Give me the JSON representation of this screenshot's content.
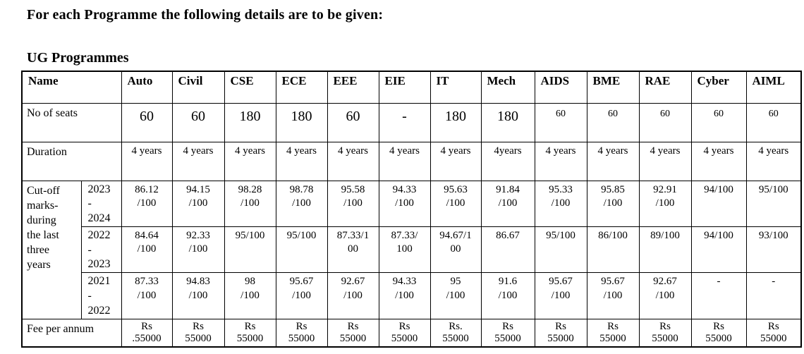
{
  "page": {
    "intro": "For each Programme the following details are to be given:",
    "section_title": "UG Programmes"
  },
  "table": {
    "header_label": "Name",
    "programs": [
      "Auto",
      "Civil",
      "CSE",
      "ECE",
      "EEE",
      "EIE",
      "IT",
      "Mech",
      "AIDS",
      "BME",
      "RAE",
      "Cyber",
      "AIML"
    ],
    "seats": {
      "label": "No of seats",
      "values": [
        "60",
        "60",
        "180",
        "180",
        "60",
        "-",
        "180",
        "180",
        "60",
        "60",
        "60",
        "60",
        "60"
      ],
      "small_start_index": 8
    },
    "duration": {
      "label": "Duration",
      "values": [
        "4 years",
        "4 years",
        "4 years",
        "4 years",
        "4 years",
        "4 years",
        "4 years",
        "4years",
        "4 years",
        "4 years",
        "4 years",
        "4 years",
        "4 years"
      ]
    },
    "cutoff": {
      "label_lines": [
        "Cut-off",
        "marks-",
        "during",
        "the last",
        "three",
        "years"
      ],
      "years": [
        {
          "year_lines": [
            "2023",
            "-",
            "2024"
          ],
          "values": [
            "86.12\n/100",
            "94.15\n/100",
            "98.28\n/100",
            "98.78\n/100",
            "95.58\n/100",
            "94.33\n/100",
            "95.63\n/100",
            "91.84\n/100",
            "95.33\n/100",
            "95.85\n/100",
            "92.91\n/100",
            "94/100",
            "95/100"
          ]
        },
        {
          "year_lines": [
            "2022",
            "-",
            "2023"
          ],
          "values": [
            "84.64\n/100",
            "92.33\n/100",
            "95/100",
            "95/100",
            "87.33/1\n00",
            "87.33/\n100",
            "94.67/1\n00",
            "86.67",
            "95/100",
            "86/100",
            "89/100",
            "94/100",
            "93/100"
          ]
        },
        {
          "year_lines": [
            "2021",
            "-",
            "2022"
          ],
          "values": [
            "87.33\n/100",
            "94.83\n/100",
            "98\n/100",
            "95.67\n/100",
            "92.67\n/100",
            "94.33\n/100",
            "95\n/100",
            "91.6\n/100",
            "95.67\n/100",
            "95.67\n/100",
            "92.67\n/100",
            "-",
            "-"
          ]
        }
      ]
    },
    "fee": {
      "label": "Fee per annum",
      "values": [
        "Rs\n.55000",
        "Rs\n55000",
        "Rs\n55000",
        "Rs\n55000",
        "Rs\n55000",
        "Rs\n55000",
        "Rs.\n55000",
        "Rs\n55000",
        "Rs\n55000",
        "Rs\n55000",
        "Rs\n55000",
        "Rs\n55000",
        "Rs\n55000"
      ]
    }
  }
}
